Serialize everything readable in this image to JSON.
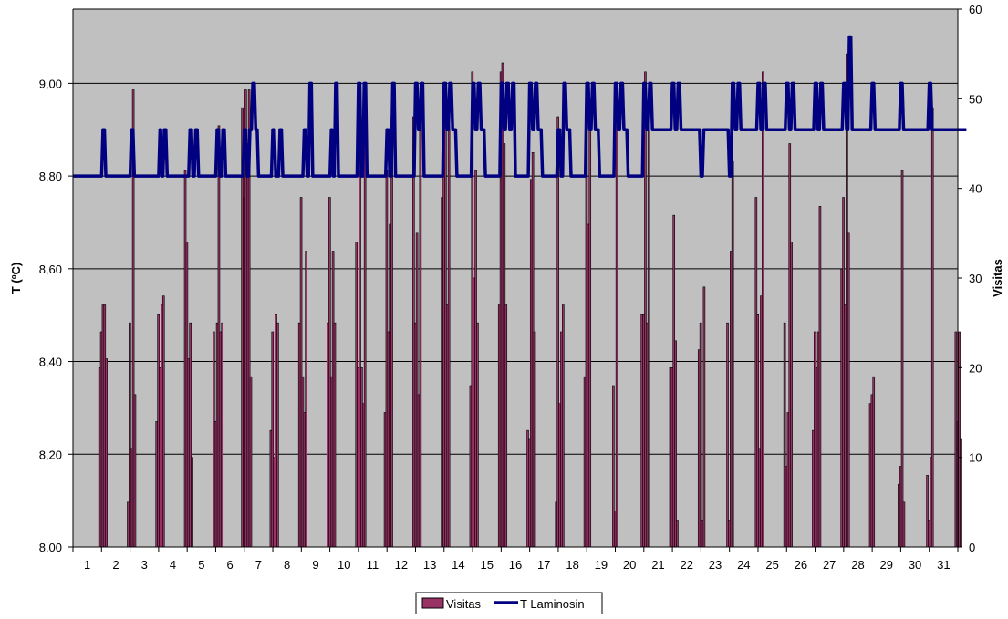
{
  "chart_data": {
    "type": "bar+line",
    "title": "",
    "xlabel": "",
    "ylabel_left": "T (ºC)",
    "ylabel_right": "Visitas",
    "ylim_left": [
      8.0,
      9.16
    ],
    "yticks_left": [
      "8,00",
      "8,20",
      "8,40",
      "8,60",
      "8,80",
      "9,00"
    ],
    "ylim_right": [
      0,
      60
    ],
    "yticks_right": [
      "0",
      "10",
      "20",
      "30",
      "40",
      "50",
      "60"
    ],
    "x_categories": [
      "1",
      "2",
      "3",
      "4",
      "5",
      "6",
      "7",
      "8",
      "9",
      "10",
      "11",
      "12",
      "13",
      "14",
      "15",
      "16",
      "17",
      "18",
      "19",
      "20",
      "21",
      "22",
      "23",
      "24",
      "25",
      "26",
      "27",
      "28",
      "29",
      "30",
      "31"
    ],
    "grid": "horizontal major gridlines",
    "plot_background": "#c0c0c0",
    "legend_position": "bottom",
    "series": [
      {
        "name": "Visitas",
        "kind": "bar",
        "axis": "right",
        "color": "#993366",
        "note": "hourly visit counts; bursts per day",
        "bursts": [
          [
            0.9,
            [
              20,
              24,
              27,
              27,
              21
            ]
          ],
          [
            1.9,
            [
              5,
              25,
              11,
              51,
              17
            ]
          ],
          [
            2.9,
            [
              14,
              26,
              20,
              27,
              28
            ]
          ],
          [
            3.9,
            [
              42,
              34,
              21,
              25,
              10
            ]
          ],
          [
            4.9,
            [
              24,
              14,
              25,
              47,
              24,
              25
            ]
          ],
          [
            5.9,
            [
              49,
              39,
              51,
              45,
              51,
              19
            ]
          ],
          [
            6.9,
            [
              13,
              24,
              10,
              26,
              25
            ]
          ],
          [
            7.9,
            [
              25,
              39,
              19,
              15,
              33
            ]
          ],
          [
            8.9,
            [
              25,
              39,
              19,
              33,
              25
            ]
          ],
          [
            9.9,
            [
              34,
              20,
              42,
              20,
              16,
              48
            ]
          ],
          [
            10.9,
            [
              15,
              42,
              24,
              36,
              48
            ]
          ],
          [
            11.9,
            [
              48,
              25,
              35,
              17,
              47
            ]
          ],
          [
            12.9,
            [
              39,
              43,
              50,
              27,
              47
            ]
          ],
          [
            13.9,
            [
              18,
              53,
              30,
              42,
              25
            ]
          ],
          [
            14.9,
            [
              27,
              53,
              54,
              45,
              27
            ]
          ],
          [
            15.9,
            [
              13,
              12,
              41,
              44,
              24
            ]
          ],
          [
            16.9,
            [
              5,
              48,
              16,
              24,
              27
            ]
          ],
          [
            17.9,
            [
              19,
              51,
              36,
              47
            ]
          ],
          [
            18.9,
            [
              18,
              4,
              47
            ]
          ],
          [
            19.9,
            [
              26,
              26,
              53,
              25,
              47
            ]
          ],
          [
            20.9,
            [
              20,
              20,
              37,
              23,
              3
            ]
          ],
          [
            21.9,
            [
              22,
              25,
              3,
              29
            ]
          ],
          [
            22.9,
            [
              25,
              3,
              33,
              43
            ]
          ],
          [
            23.9,
            [
              39,
              26,
              11,
              28,
              53
            ]
          ],
          [
            24.9,
            [
              25,
              9,
              15,
              45,
              34
            ]
          ],
          [
            25.9,
            [
              13,
              24,
              20,
              24,
              38
            ]
          ],
          [
            26.9,
            [
              31,
              39,
              27,
              55,
              35
            ]
          ],
          [
            27.9,
            [
              16,
              17,
              19
            ]
          ],
          [
            28.9,
            [
              7,
              9,
              42,
              5
            ]
          ],
          [
            29.9,
            [
              8,
              3,
              10,
              49
            ]
          ],
          [
            30.9,
            [
              24,
              14,
              24,
              12
            ]
          ]
        ]
      },
      {
        "name": "T Laminosin",
        "kind": "line",
        "axis": "left",
        "color": "#000080",
        "note": "hourly temperature, steps of 0.1 ºC",
        "points": [
          [
            0.0,
            8.8
          ],
          [
            1.0,
            8.8
          ],
          [
            1.05,
            8.9
          ],
          [
            1.15,
            8.8
          ],
          [
            2.0,
            8.8
          ],
          [
            2.05,
            8.9
          ],
          [
            2.15,
            8.8
          ],
          [
            2.95,
            8.8
          ],
          [
            3.05,
            8.9
          ],
          [
            3.12,
            8.8
          ],
          [
            3.2,
            8.9
          ],
          [
            3.3,
            8.8
          ],
          [
            4.0,
            8.8
          ],
          [
            4.1,
            8.9
          ],
          [
            4.2,
            8.8
          ],
          [
            4.3,
            8.9
          ],
          [
            4.4,
            8.8
          ],
          [
            4.95,
            8.8
          ],
          [
            5.05,
            8.9
          ],
          [
            5.15,
            8.8
          ],
          [
            5.25,
            8.9
          ],
          [
            5.35,
            8.8
          ],
          [
            5.95,
            8.8
          ],
          [
            6.0,
            8.9
          ],
          [
            6.1,
            8.8
          ],
          [
            6.2,
            8.9
          ],
          [
            6.3,
            9.0
          ],
          [
            6.4,
            8.9
          ],
          [
            6.5,
            8.8
          ],
          [
            6.95,
            8.8
          ],
          [
            7.0,
            8.9
          ],
          [
            7.1,
            8.8
          ],
          [
            7.25,
            8.9
          ],
          [
            7.35,
            8.8
          ],
          [
            8.0,
            8.8
          ],
          [
            8.1,
            8.9
          ],
          [
            8.2,
            8.8
          ],
          [
            8.3,
            9.0
          ],
          [
            8.4,
            8.8
          ],
          [
            9.0,
            8.8
          ],
          [
            9.05,
            8.9
          ],
          [
            9.12,
            8.8
          ],
          [
            9.2,
            9.0
          ],
          [
            9.3,
            8.8
          ],
          [
            9.95,
            8.8
          ],
          [
            10.0,
            9.0
          ],
          [
            10.1,
            8.8
          ],
          [
            10.2,
            9.0
          ],
          [
            10.3,
            8.8
          ],
          [
            10.95,
            8.8
          ],
          [
            11.0,
            8.9
          ],
          [
            11.1,
            8.8
          ],
          [
            11.2,
            9.0
          ],
          [
            11.3,
            8.8
          ],
          [
            11.95,
            8.8
          ],
          [
            12.0,
            9.0
          ],
          [
            12.1,
            8.9
          ],
          [
            12.2,
            9.0
          ],
          [
            12.3,
            8.8
          ],
          [
            12.95,
            8.8
          ],
          [
            13.0,
            9.0
          ],
          [
            13.1,
            8.9
          ],
          [
            13.2,
            9.0
          ],
          [
            13.3,
            8.9
          ],
          [
            13.45,
            8.8
          ],
          [
            13.95,
            8.8
          ],
          [
            14.0,
            9.0
          ],
          [
            14.1,
            8.9
          ],
          [
            14.2,
            9.0
          ],
          [
            14.3,
            8.9
          ],
          [
            14.45,
            8.8
          ],
          [
            14.95,
            8.8
          ],
          [
            15.0,
            9.0
          ],
          [
            15.1,
            8.9
          ],
          [
            15.2,
            9.0
          ],
          [
            15.3,
            8.9
          ],
          [
            15.4,
            9.0
          ],
          [
            15.5,
            8.8
          ],
          [
            15.95,
            8.8
          ],
          [
            16.0,
            9.0
          ],
          [
            16.1,
            8.9
          ],
          [
            16.2,
            9.0
          ],
          [
            16.3,
            8.9
          ],
          [
            16.45,
            8.8
          ],
          [
            16.95,
            8.8
          ],
          [
            17.0,
            8.9
          ],
          [
            17.1,
            8.8
          ],
          [
            17.2,
            9.0
          ],
          [
            17.3,
            8.9
          ],
          [
            17.45,
            8.8
          ],
          [
            17.95,
            8.8
          ],
          [
            18.0,
            9.0
          ],
          [
            18.1,
            8.9
          ],
          [
            18.2,
            9.0
          ],
          [
            18.3,
            8.9
          ],
          [
            18.45,
            8.8
          ],
          [
            18.95,
            8.8
          ],
          [
            19.0,
            9.0
          ],
          [
            19.1,
            8.9
          ],
          [
            19.2,
            9.0
          ],
          [
            19.3,
            8.9
          ],
          [
            19.45,
            8.8
          ],
          [
            19.95,
            8.8
          ],
          [
            20.0,
            9.0
          ],
          [
            20.1,
            8.9
          ],
          [
            20.2,
            9.0
          ],
          [
            20.3,
            8.9
          ],
          [
            20.45,
            8.9
          ],
          [
            20.95,
            8.9
          ],
          [
            21.0,
            9.0
          ],
          [
            21.1,
            8.9
          ],
          [
            21.2,
            9.0
          ],
          [
            21.3,
            8.9
          ],
          [
            21.95,
            8.9
          ],
          [
            22.0,
            8.8
          ],
          [
            22.1,
            8.9
          ],
          [
            22.2,
            8.9
          ],
          [
            22.95,
            8.9
          ],
          [
            23.0,
            8.8
          ],
          [
            23.1,
            9.0
          ],
          [
            23.2,
            8.9
          ],
          [
            23.3,
            9.0
          ],
          [
            23.4,
            8.9
          ],
          [
            23.95,
            8.9
          ],
          [
            24.0,
            9.0
          ],
          [
            24.1,
            8.9
          ],
          [
            24.2,
            9.0
          ],
          [
            24.3,
            8.9
          ],
          [
            24.95,
            8.9
          ],
          [
            25.0,
            9.0
          ],
          [
            25.1,
            8.9
          ],
          [
            25.2,
            9.0
          ],
          [
            25.3,
            8.9
          ],
          [
            25.95,
            8.9
          ],
          [
            26.0,
            9.0
          ],
          [
            26.1,
            8.9
          ],
          [
            26.2,
            9.0
          ],
          [
            26.3,
            8.9
          ],
          [
            26.95,
            8.9
          ],
          [
            27.0,
            9.0
          ],
          [
            27.1,
            8.9
          ],
          [
            27.2,
            9.1
          ],
          [
            27.3,
            8.9
          ],
          [
            27.95,
            8.9
          ],
          [
            28.0,
            9.0
          ],
          [
            28.1,
            8.9
          ],
          [
            28.95,
            8.9
          ],
          [
            29.0,
            9.0
          ],
          [
            29.1,
            8.9
          ],
          [
            29.95,
            8.9
          ],
          [
            30.0,
            9.0
          ],
          [
            30.1,
            8.9
          ],
          [
            31.3,
            8.9
          ]
        ]
      }
    ]
  }
}
